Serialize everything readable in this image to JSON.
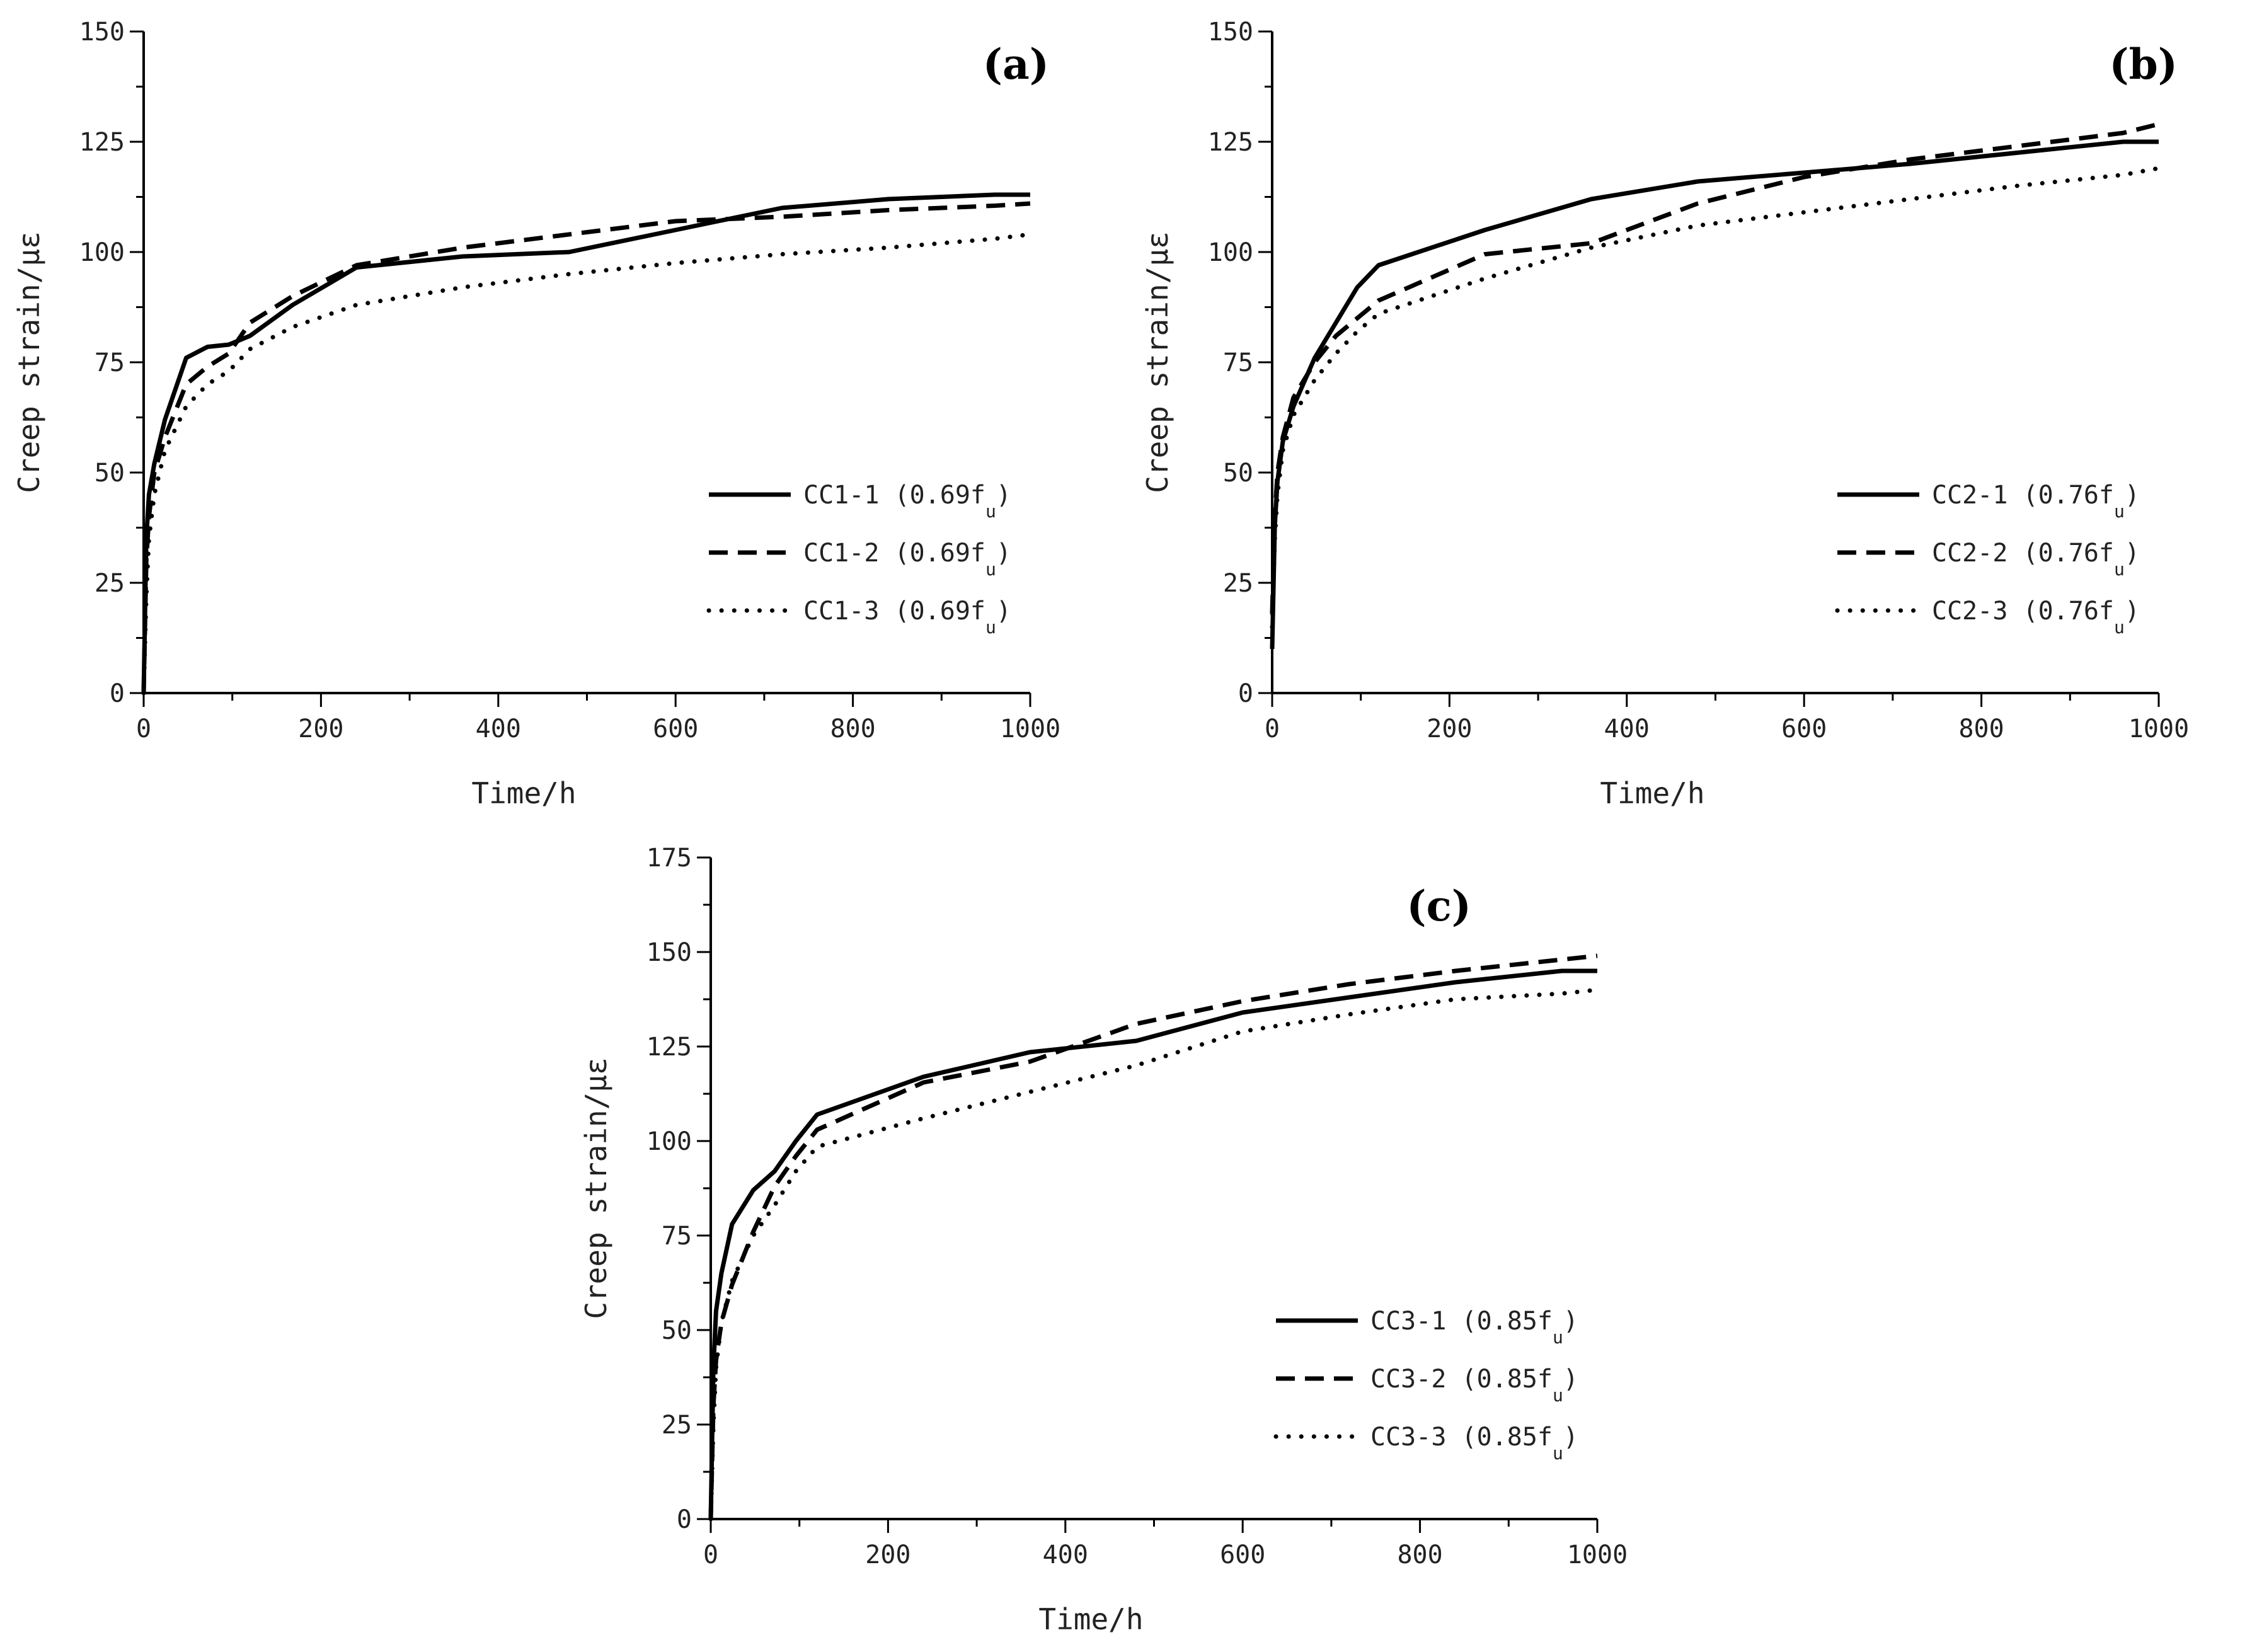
{
  "chart_data": [
    {
      "type": "line",
      "panel_label": "a",
      "xlabel": "Time/h",
      "ylabel": "Creep strain/με",
      "xlim": [
        0,
        1000
      ],
      "ylim": [
        0,
        150
      ],
      "xticks": [
        0,
        200,
        400,
        600,
        800,
        1000
      ],
      "yticks": [
        0,
        25,
        50,
        75,
        100,
        125,
        150
      ],
      "legend_position": "bottom-right",
      "series": [
        {
          "name": "CC1-1",
          "legend_label": "CC1-1 (0.69f",
          "legend_sub": "u",
          "legend_close": ")",
          "style": "solid",
          "x": [
            0,
            3,
            6,
            12,
            24,
            48,
            72,
            96,
            120,
            168,
            240,
            360,
            480,
            600,
            720,
            840,
            960,
            1000
          ],
          "y": [
            0,
            35,
            45,
            52,
            62,
            76,
            78.5,
            79,
            81,
            88,
            96.5,
            99,
            100,
            105,
            110,
            112,
            113,
            113
          ]
        },
        {
          "name": "CC1-2",
          "legend_label": "CC1-2 (0.69f",
          "legend_sub": "u",
          "legend_close": ")",
          "style": "dashed",
          "x": [
            0,
            3,
            6,
            12,
            24,
            48,
            72,
            96,
            120,
            168,
            240,
            360,
            480,
            600,
            720,
            840,
            960,
            1000
          ],
          "y": [
            0,
            30,
            40,
            50,
            58,
            70,
            74,
            77,
            84,
            90,
            97,
            101,
            104,
            107,
            108,
            109.5,
            110.5,
            111
          ]
        },
        {
          "name": "CC1-3",
          "legend_label": "CC1-3 (0.69f",
          "legend_sub": "u",
          "legend_close": ")",
          "style": "dotted",
          "x": [
            0,
            3,
            6,
            12,
            24,
            48,
            72,
            96,
            120,
            168,
            240,
            360,
            480,
            600,
            720,
            840,
            960,
            1000
          ],
          "y": [
            0,
            22,
            35,
            45,
            55,
            65,
            70,
            73,
            78,
            83,
            88,
            92,
            95,
            97.5,
            99.5,
            101,
            103,
            104
          ]
        }
      ]
    },
    {
      "type": "line",
      "panel_label": "b",
      "xlabel": "Time/h",
      "ylabel": "Creep strain/με",
      "xlim": [
        0,
        1000
      ],
      "ylim": [
        0,
        150
      ],
      "xticks": [
        0,
        200,
        400,
        600,
        800,
        1000
      ],
      "yticks": [
        0,
        25,
        50,
        75,
        100,
        125,
        150
      ],
      "legend_position": "bottom-right",
      "series": [
        {
          "name": "CC2-1",
          "legend_label": "CC2-1 (0.76f",
          "legend_sub": "u",
          "legend_close": ")",
          "style": "solid",
          "x": [
            0,
            3,
            6,
            12,
            24,
            48,
            72,
            96,
            120,
            240,
            360,
            480,
            600,
            720,
            840,
            960,
            1000
          ],
          "y": [
            10,
            38,
            48,
            57,
            65,
            76,
            84,
            92,
            97,
            105,
            112,
            116,
            118,
            120,
            122.5,
            125,
            125
          ]
        },
        {
          "name": "CC2-2",
          "legend_label": "CC2-2 (0.76f",
          "legend_sub": "u",
          "legend_close": ")",
          "style": "dashed",
          "x": [
            0,
            3,
            6,
            12,
            24,
            48,
            72,
            96,
            120,
            240,
            360,
            480,
            600,
            720,
            840,
            960,
            1000
          ],
          "y": [
            18,
            40,
            50,
            58,
            67,
            75,
            81,
            85,
            89,
            99.5,
            102,
            111,
            117,
            121,
            124,
            127,
            129
          ]
        },
        {
          "name": "CC2-3",
          "legend_label": "CC2-3 (0.76f",
          "legend_sub": "u",
          "legend_close": ")",
          "style": "dotted",
          "x": [
            0,
            3,
            6,
            12,
            24,
            48,
            72,
            96,
            120,
            240,
            360,
            480,
            600,
            720,
            840,
            960,
            1000
          ],
          "y": [
            15,
            35,
            45,
            55,
            63,
            71,
            77,
            82,
            86,
            94,
            101,
            106,
            109,
            112,
            115,
            117.5,
            119
          ]
        }
      ]
    },
    {
      "type": "line",
      "panel_label": "c",
      "xlabel": "Time/h",
      "ylabel": "Creep strain/με",
      "xlim": [
        0,
        1000
      ],
      "ylim": [
        0,
        175
      ],
      "xticks": [
        0,
        200,
        400,
        600,
        800,
        1000
      ],
      "yticks": [
        0,
        25,
        50,
        75,
        100,
        125,
        150,
        175
      ],
      "legend_position": "bottom-right",
      "series": [
        {
          "name": "CC3-1",
          "legend_label": "CC3-1 (0.85f",
          "legend_sub": "u",
          "legend_close": ")",
          "style": "solid",
          "x": [
            0,
            3,
            6,
            12,
            24,
            48,
            72,
            96,
            120,
            240,
            360,
            480,
            600,
            720,
            840,
            960,
            1000
          ],
          "y": [
            0,
            40,
            55,
            65,
            78,
            87,
            92,
            100,
            107,
            117,
            123.5,
            126.5,
            134,
            138,
            142,
            145,
            145
          ]
        },
        {
          "name": "CC3-2",
          "legend_label": "CC3-2 (0.85f",
          "legend_sub": "u",
          "legend_close": ")",
          "style": "dashed",
          "x": [
            0,
            3,
            6,
            12,
            24,
            48,
            72,
            96,
            120,
            240,
            360,
            480,
            600,
            720,
            840,
            960,
            1000
          ],
          "y": [
            0,
            30,
            42,
            52,
            62,
            76,
            88,
            96,
            103,
            115.5,
            121,
            131,
            137,
            141.5,
            145,
            148,
            149
          ]
        },
        {
          "name": "CC3-3",
          "legend_label": "CC3-3 (0.85f",
          "legend_sub": "u",
          "legend_close": ")",
          "style": "dotted",
          "x": [
            0,
            3,
            6,
            12,
            24,
            48,
            72,
            96,
            120,
            240,
            360,
            480,
            600,
            720,
            840,
            960,
            1000
          ],
          "y": [
            0,
            25,
            40,
            52,
            63,
            75,
            83,
            92,
            98.5,
            106,
            113,
            120,
            129,
            133.5,
            137.5,
            139,
            140
          ]
        }
      ]
    }
  ]
}
